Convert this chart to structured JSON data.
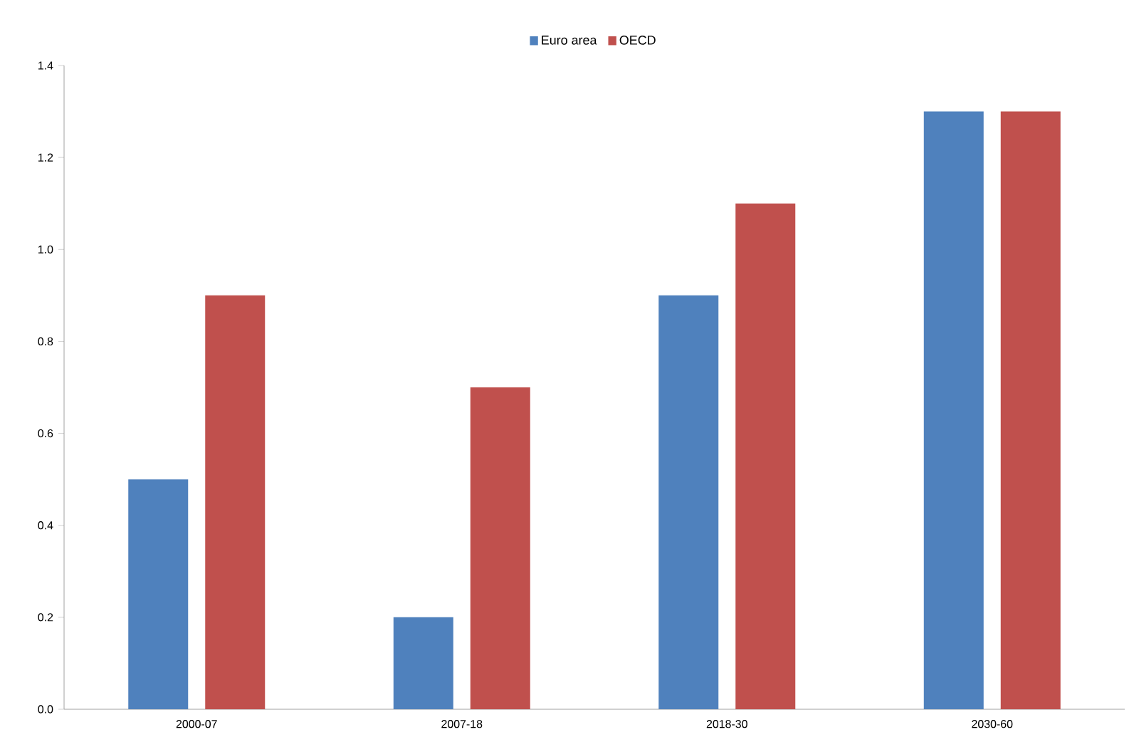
{
  "chart_data": {
    "type": "bar",
    "categories": [
      "2000-07",
      "2007-18",
      "2018-30",
      "2030-60"
    ],
    "series": [
      {
        "name": "Euro area",
        "color": "#4f81bd",
        "values": [
          0.5,
          0.2,
          0.9,
          1.3
        ]
      },
      {
        "name": "OECD",
        "color": "#c0504d",
        "values": [
          0.9,
          0.7,
          1.1,
          1.3
        ]
      }
    ],
    "ylim": [
      0,
      1.4
    ],
    "yticks": [
      {
        "value": 0,
        "label": "0.0"
      },
      0.2,
      0.4,
      0.6,
      0.8,
      {
        "value": 1,
        "label": "1.0"
      },
      1.2,
      1.4
    ],
    "grid": false,
    "legend": "top"
  }
}
